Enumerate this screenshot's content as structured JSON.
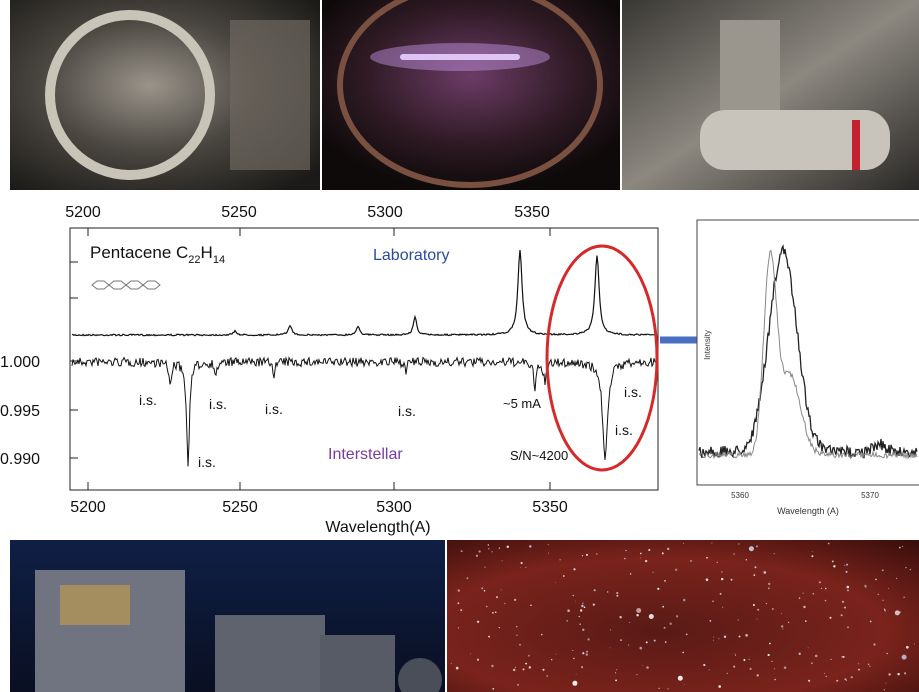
{
  "top_axis": {
    "ticks": [
      "5200",
      "5250",
      "5300",
      "5350"
    ]
  },
  "main_plot": {
    "title": "Pentacene C",
    "subscript_1": "22",
    "title_mid": "H",
    "subscript_2": "14",
    "y_ticks": [
      "1.000",
      "0.995",
      "0.990"
    ],
    "x_ticks": [
      "5200",
      "5250",
      "5300",
      "5350"
    ],
    "x_label": "Wavelength(A)",
    "lab_label": "Laboratory",
    "ism_label": "Interstellar",
    "annotations": [
      "i.s.",
      "i.s.",
      "i.s.",
      "i.s.",
      "i.s.",
      "i.s.",
      "i.s."
    ],
    "current": "~5 mA",
    "snr": "S/N~4200"
  },
  "inset": {
    "x_ticks": [
      "5360",
      "5370"
    ],
    "x_label": "Wavelength (A)",
    "y_label": "Intensity"
  }
}
